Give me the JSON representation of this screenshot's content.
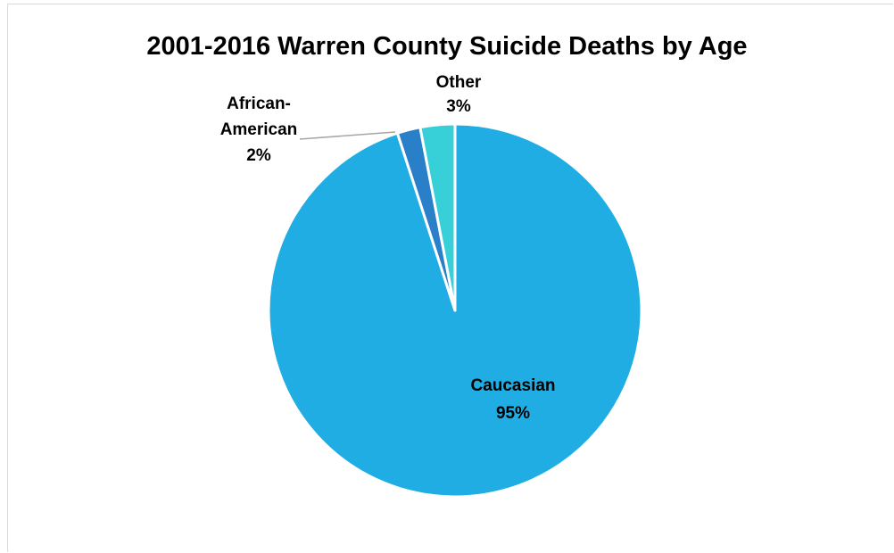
{
  "chart_data": {
    "type": "pie",
    "title": "2001-2016 Warren County Suicide Deaths by Age",
    "slices": [
      {
        "label_lines": [
          "Caucasian"
        ],
        "percent_label": "95%",
        "value": 95,
        "color": "#1fade3"
      },
      {
        "label_lines": [
          "African-",
          "American"
        ],
        "percent_label": "2%",
        "value": 2,
        "color": "#2a7fc9"
      },
      {
        "label_lines": [
          "Other"
        ],
        "percent_label": "3%",
        "value": 3,
        "color": "#38d0d8"
      }
    ],
    "legend": "none",
    "start_angle": "top, counter-clockwise"
  }
}
